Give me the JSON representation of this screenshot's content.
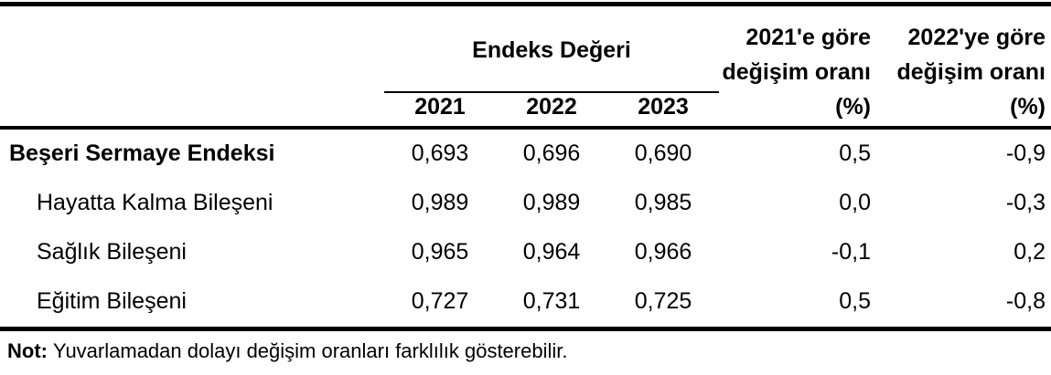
{
  "table": {
    "group_header": "Endeks Değeri",
    "year_headers": [
      "2021",
      "2022",
      "2023"
    ],
    "change_col_1": {
      "lines": [
        "2021'e göre",
        "değişim oranı",
        "(%)"
      ]
    },
    "change_col_2": {
      "lines": [
        "2022'ye göre",
        "değişim oranı",
        "(%)"
      ]
    },
    "rows": [
      {
        "label": "Beşeri Sermaye Endeksi",
        "values": [
          "0,693",
          "0,696",
          "0,690",
          "0,5",
          "-0,9"
        ]
      },
      {
        "label": "Hayatta Kalma Bileşeni",
        "values": [
          "0,989",
          "0,989",
          "0,985",
          "0,0",
          "-0,3"
        ]
      },
      {
        "label": "Sağlık Bileşeni",
        "values": [
          "0,965",
          "0,964",
          "0,966",
          "-0,1",
          "0,2"
        ]
      },
      {
        "label": "Eğitim Bileşeni",
        "values": [
          "0,727",
          "0,731",
          "0,725",
          "0,5",
          "-0,8"
        ]
      }
    ],
    "note_label": "Not:",
    "note_text": "Yuvarlamadan dolayı değişim oranları farklılık gösterebilir."
  },
  "colors": {
    "text": "#000000",
    "rules": "#000000",
    "background": "#ffffff"
  }
}
